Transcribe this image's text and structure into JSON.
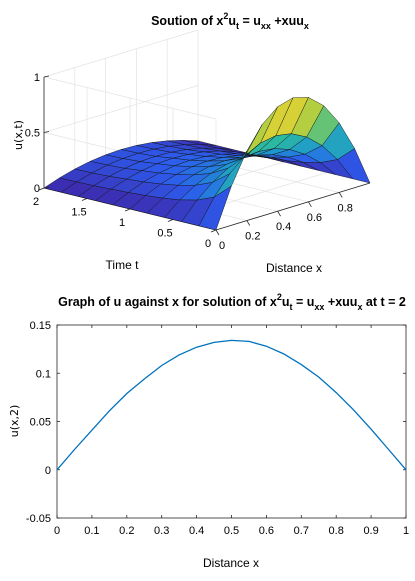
{
  "chart_data": [
    {
      "type": "surface",
      "title": {
        "prefix": "Soution of x",
        "sup": "2",
        "mid": "u",
        "sub1": "t",
        "eq": " = u",
        "sub2": "xx",
        "plus": " +xuu",
        "sub3": "x"
      },
      "xlabel": "Distance x",
      "ylabel": "Time t",
      "zlabel": "u(x,t)",
      "x_ticks": [
        "0",
        "0.2",
        "0.4",
        "0.6",
        "0.8"
      ],
      "y_ticks": [
        "0",
        "0.5",
        "1",
        "1.5",
        "2"
      ],
      "z_ticks": [
        "0",
        "0.5",
        "1"
      ],
      "xlim": [
        0,
        1
      ],
      "ylim": [
        0,
        2
      ],
      "zlim": [
        0,
        1
      ],
      "x": [
        0,
        0.1,
        0.2,
        0.3,
        0.4,
        0.5,
        0.6,
        0.7,
        0.8,
        0.9,
        1.0
      ],
      "t": [
        0,
        0.2,
        0.4,
        0.6,
        0.8,
        1.0,
        1.2,
        1.4,
        1.6,
        1.8,
        2.0
      ],
      "u_peak_by_t": [
        0.98,
        0.6,
        0.42,
        0.32,
        0.26,
        0.22,
        0.19,
        0.17,
        0.15,
        0.14,
        0.135
      ],
      "colormap": [
        "#3e26a8",
        "#2d5ced",
        "#1f96d0",
        "#2bb9a1",
        "#9dcc4a",
        "#f5d42d",
        "#f9fb0e"
      ]
    },
    {
      "type": "line",
      "title": {
        "prefix": "Graph of u against x for solution of x",
        "sup": "2",
        "mid": "u",
        "sub1": "t",
        "eq": " = u",
        "sub2": "xx",
        "plus": " +xuu",
        "sub3": "x",
        "suffix": " at t = 2"
      },
      "xlabel": "Distance x",
      "ylabel": "u(x,2)",
      "x_ticks": [
        "0",
        "0.1",
        "0.2",
        "0.3",
        "0.4",
        "0.5",
        "0.6",
        "0.7",
        "0.8",
        "0.9",
        "1"
      ],
      "y_ticks": [
        "-0.05",
        "0",
        "0.05",
        "0.1",
        "0.15"
      ],
      "xlim": [
        0,
        1
      ],
      "ylim": [
        -0.05,
        0.15
      ],
      "series": [
        {
          "color": "#0072bd",
          "x": [
            0,
            0.05,
            0.1,
            0.15,
            0.2,
            0.25,
            0.3,
            0.35,
            0.4,
            0.45,
            0.5,
            0.55,
            0.6,
            0.65,
            0.7,
            0.75,
            0.8,
            0.85,
            0.9,
            0.95,
            1.0
          ],
          "y": [
            0,
            0.021,
            0.041,
            0.061,
            0.079,
            0.094,
            0.108,
            0.119,
            0.127,
            0.132,
            0.134,
            0.133,
            0.128,
            0.12,
            0.109,
            0.096,
            0.08,
            0.062,
            0.042,
            0.021,
            0
          ]
        }
      ]
    }
  ]
}
